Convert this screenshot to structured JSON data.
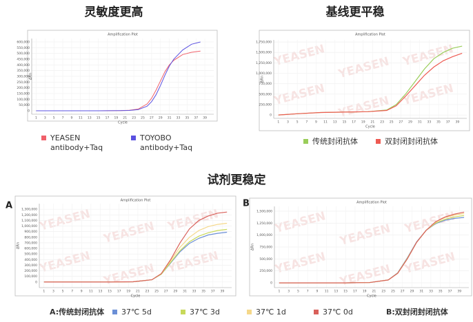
{
  "headings": [
    "灵敏度更高",
    "基线更平稳",
    "试剂更稳定"
  ],
  "panel_labels": [
    "A",
    "B"
  ],
  "notes": [
    "A:传统封闭抗体",
    "B:双封闭封闭抗体"
  ],
  "chart_data": [
    {
      "type": "line",
      "title": "Amplification Plot",
      "x_label": "Cycle",
      "y_label": "ΔRn",
      "grid": true,
      "xlim": [
        0,
        41
      ],
      "xticks": [
        1,
        3,
        5,
        7,
        9,
        11,
        13,
        15,
        17,
        19,
        21,
        23,
        25,
        27,
        29,
        31,
        33,
        35,
        37,
        39
      ],
      "ylim": [
        -30000,
        630000
      ],
      "yticks": [
        0,
        {
          "value": 50000,
          "label": "50,000"
        },
        {
          "value": 100000,
          "label": "100,000"
        },
        {
          "value": 150000,
          "label": "150,000"
        },
        {
          "value": 200000,
          "label": "200,000"
        },
        {
          "value": 250000,
          "label": "250,000"
        },
        {
          "value": 300000,
          "label": "300,000"
        },
        {
          "value": 350000,
          "label": "350,000"
        },
        {
          "value": 400000,
          "label": "400,000"
        },
        {
          "value": 450000,
          "label": "450,000"
        },
        {
          "value": 500000,
          "label": "500,000"
        },
        {
          "value": 550000,
          "label": "550,000"
        },
        {
          "value": 600000,
          "label": "600,000"
        }
      ],
      "x": [
        1,
        5,
        10,
        15,
        20,
        22,
        24,
        26,
        27,
        28,
        29,
        30,
        31,
        32,
        34,
        36,
        38
      ],
      "series": [
        {
          "name": "YEASEN\nantibody+Taq",
          "color": "#f0606a",
          "values": [
            0,
            0,
            0,
            0,
            2000,
            5000,
            15000,
            60000,
            110000,
            180000,
            260000,
            340000,
            400000,
            440000,
            490000,
            510000,
            520000
          ]
        },
        {
          "name": "TOYOBO\nantibody+Taq",
          "color": "#5a50e0",
          "values": [
            0,
            0,
            0,
            0,
            1000,
            3000,
            10000,
            40000,
            80000,
            140000,
            220000,
            310000,
            390000,
            450000,
            530000,
            580000,
            600000
          ]
        }
      ]
    },
    {
      "type": "line",
      "title": "Amplification Plot",
      "x_label": "Cycle",
      "y_label": "ΔRn",
      "grid": true,
      "watermark": "YEASEN",
      "xlim": [
        0,
        41
      ],
      "xticks": [
        1,
        3,
        5,
        7,
        9,
        11,
        13,
        15,
        17,
        19,
        21,
        23,
        25,
        27,
        29,
        31,
        33,
        35,
        37,
        39
      ],
      "ylim": [
        -80000,
        1800000
      ],
      "yticks": [
        0,
        {
          "value": 250000,
          "label": "250,000"
        },
        {
          "value": 500000,
          "label": "500,000"
        },
        {
          "value": 750000,
          "label": "750,000"
        },
        {
          "value": 1000000,
          "label": "1,000,000"
        },
        {
          "value": 1250000,
          "label": "1,250,000"
        },
        {
          "value": 1500000,
          "label": "1,500,000"
        },
        {
          "value": 1750000,
          "label": "1,750,000"
        }
      ],
      "x": [
        1,
        5,
        10,
        15,
        20,
        24,
        26,
        28,
        30,
        32,
        34,
        36,
        38,
        40
      ],
      "series": [
        {
          "name": "传统封闭抗体",
          "color": "#9acd5a",
          "values": [
            0,
            30000,
            60000,
            70000,
            80000,
            120000,
            250000,
            500000,
            800000,
            1100000,
            1350000,
            1500000,
            1600000,
            1650000
          ]
        },
        {
          "name": "双封闭封闭抗体",
          "color": "#ee5a52",
          "values": [
            0,
            30000,
            60000,
            70000,
            80000,
            110000,
            220000,
            450000,
            700000,
            950000,
            1150000,
            1300000,
            1400000,
            1480000
          ]
        }
      ]
    },
    {
      "type": "line",
      "title": "Amplification Plot",
      "x_label": "Cycle",
      "y_label": "ΔRn",
      "grid": true,
      "watermark": "YEASEN",
      "xlim": [
        0,
        41
      ],
      "xticks": [
        1,
        3,
        5,
        7,
        9,
        11,
        13,
        15,
        17,
        19,
        21,
        23,
        25,
        27,
        29,
        31,
        33,
        35,
        37,
        39
      ],
      "ylim": [
        -100000,
        1400000
      ],
      "yticks": [
        0,
        {
          "value": 100000,
          "label": "100,000"
        },
        {
          "value": 200000,
          "label": "200,000"
        },
        {
          "value": 300000,
          "label": "300,000"
        },
        {
          "value": 400000,
          "label": "400,000"
        },
        {
          "value": 500000,
          "label": "500,000"
        },
        {
          "value": 600000,
          "label": "600,000"
        },
        {
          "value": 700000,
          "label": "700,000"
        },
        {
          "value": 800000,
          "label": "800,000"
        },
        {
          "value": 900000,
          "label": "900,000"
        },
        {
          "value": 1000000,
          "label": "1,000,000"
        },
        {
          "value": 1100000,
          "label": "1,100,000"
        },
        {
          "value": 1200000,
          "label": "1,200,000"
        },
        {
          "value": 1300000,
          "label": "1,300,000"
        }
      ],
      "x": [
        1,
        5,
        10,
        15,
        20,
        24,
        26,
        28,
        30,
        32,
        34,
        36,
        38,
        40
      ],
      "series": [
        {
          "name": "37℃  5d",
          "color": "#6b8fd6",
          "values": [
            0,
            0,
            0,
            0,
            5000,
            40000,
            140000,
            340000,
            540000,
            690000,
            780000,
            840000,
            870000,
            890000
          ]
        },
        {
          "name": "37℃  3d",
          "color": "#c8d95a",
          "values": [
            0,
            0,
            0,
            0,
            5000,
            40000,
            140000,
            350000,
            560000,
            720000,
            820000,
            880000,
            920000,
            940000
          ]
        },
        {
          "name": "37℃  1d",
          "color": "#f5d88a",
          "values": [
            0,
            0,
            0,
            0,
            5000,
            40000,
            150000,
            380000,
            620000,
            800000,
            920000,
            990000,
            1030000,
            1050000
          ]
        },
        {
          "name": "37℃  0d",
          "color": "#d9605a",
          "values": [
            0,
            0,
            0,
            0,
            5000,
            40000,
            150000,
            400000,
            700000,
            950000,
            1100000,
            1180000,
            1230000,
            1250000
          ]
        }
      ]
    },
    {
      "type": "line",
      "title": "Amplification Plot",
      "x_label": "Cycle",
      "y_label": "ΔRn",
      "grid": true,
      "watermark": "YEASEN",
      "xlim": [
        0,
        41
      ],
      "xticks": [
        1,
        3,
        5,
        7,
        9,
        11,
        13,
        15,
        17,
        19,
        21,
        23,
        25,
        27,
        29,
        31,
        33,
        35,
        37,
        39
      ],
      "ylim": [
        -100000,
        1600000
      ],
      "yticks": [
        0,
        {
          "value": 250000,
          "label": "250,000"
        },
        {
          "value": 500000,
          "label": "500,000"
        },
        {
          "value": 750000,
          "label": "750,000"
        },
        {
          "value": 1000000,
          "label": "1,000,000"
        },
        {
          "value": 1250000,
          "label": "1,250,000"
        },
        {
          "value": 1500000,
          "label": "1,500,000"
        }
      ],
      "x": [
        1,
        5,
        10,
        15,
        20,
        24,
        26,
        28,
        30,
        32,
        34,
        36,
        38,
        40
      ],
      "series": [
        {
          "color": "#6b8fd6",
          "values": [
            0,
            0,
            0,
            0,
            5000,
            60000,
            210000,
            520000,
            860000,
            1100000,
            1240000,
            1310000,
            1350000,
            1370000
          ]
        },
        {
          "color": "#c8d95a",
          "values": [
            0,
            0,
            0,
            0,
            5000,
            60000,
            205000,
            510000,
            850000,
            1100000,
            1250000,
            1330000,
            1380000,
            1410000
          ]
        },
        {
          "color": "#f5d88a",
          "values": [
            0,
            0,
            0,
            0,
            5000,
            60000,
            200000,
            500000,
            850000,
            1100000,
            1270000,
            1370000,
            1420000,
            1450000
          ]
        },
        {
          "color": "#d9605a",
          "values": [
            0,
            0,
            0,
            0,
            5000,
            60000,
            200000,
            500000,
            850000,
            1100000,
            1280000,
            1380000,
            1440000,
            1480000
          ]
        }
      ]
    }
  ]
}
